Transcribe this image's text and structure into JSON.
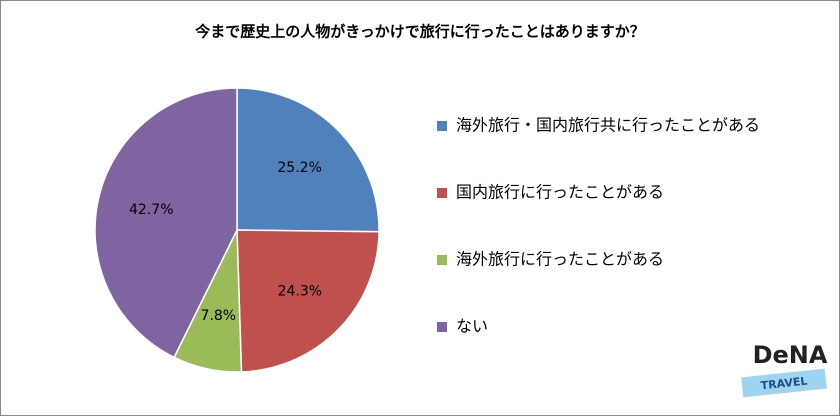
{
  "chart_data": {
    "type": "pie",
    "title": "今まで歴史上の人物がきっかけで旅行に行ったことはありますか？",
    "categories": [
      "海外旅行・国内旅行共に行ったことがある",
      "国内旅行に行ったことがある",
      "海外旅行に行ったことがある",
      "ない"
    ],
    "values": [
      25.2,
      24.3,
      7.8,
      42.7
    ],
    "value_labels": [
      "25.2%",
      "24.3%",
      "7.8%",
      "42.7%"
    ],
    "colors": [
      "#4f81bd",
      "#c0504d",
      "#9bbb59",
      "#8064a2"
    ],
    "legend": "right"
  },
  "logo": {
    "name": "DeNA",
    "tagline": "TRAVEL"
  }
}
